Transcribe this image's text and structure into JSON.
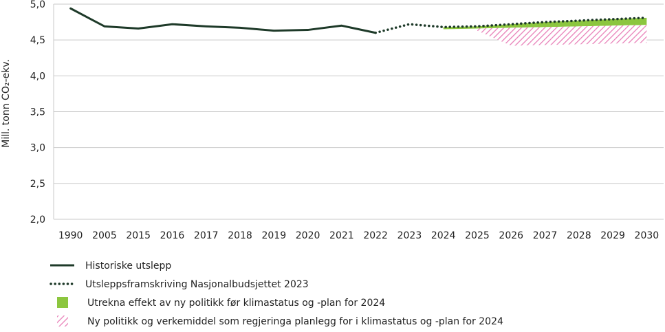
{
  "chart_data": {
    "type": "line",
    "title": "",
    "ylabel": "Mill. tonn CO₂-ekv.",
    "xlabel": "",
    "categories": [
      "1990",
      "2005",
      "2015",
      "2016",
      "2017",
      "2018",
      "2019",
      "2020",
      "2021",
      "2022",
      "2023",
      "2024",
      "2025",
      "2026",
      "2027",
      "2028",
      "2029",
      "2030"
    ],
    "ylim": [
      2.0,
      5.0
    ],
    "yticks": [
      2.0,
      2.5,
      3.0,
      3.5,
      4.0,
      4.5,
      5.0
    ],
    "ytick_labels": [
      "2,0",
      "2,5",
      "3,0",
      "3,5",
      "4,0",
      "4,5",
      "5,0"
    ],
    "grid": true,
    "series": [
      {
        "name": "Historiske utslepp",
        "style": "solid",
        "color": "#1e3a29",
        "x": [
          "1990",
          "2005",
          "2015",
          "2016",
          "2017",
          "2018",
          "2019",
          "2020",
          "2021",
          "2022"
        ],
        "values": [
          4.94,
          4.69,
          4.66,
          4.72,
          4.69,
          4.67,
          4.63,
          4.64,
          4.7,
          4.6
        ]
      },
      {
        "name": "Utsleppsframskriving Nasjonalbudsjettet 2023",
        "style": "dotted",
        "color": "#1e3a29",
        "x": [
          "2022",
          "2023",
          "2024",
          "2025",
          "2026",
          "2027",
          "2028",
          "2029",
          "2030"
        ],
        "values": [
          4.6,
          4.72,
          4.68,
          4.69,
          4.72,
          4.75,
          4.77,
          4.79,
          4.81
        ]
      }
    ],
    "bands": [
      {
        "name": "Utrekna effekt av ny politikk før klimastatus og -plan for 2024",
        "fill": "solid",
        "color": "#8cc63f",
        "x": [
          "2024",
          "2025",
          "2026",
          "2027",
          "2028",
          "2029",
          "2030"
        ],
        "upper": [
          4.68,
          4.69,
          4.72,
          4.75,
          4.77,
          4.79,
          4.81
        ],
        "lower": [
          4.65,
          4.66,
          4.67,
          4.68,
          4.69,
          4.7,
          4.71
        ]
      },
      {
        "name": "Ny politikk og verkemiddel som regjeringa planlegg for i klimastatus og -plan for 2024",
        "fill": "hatched",
        "color": "#e87fb8",
        "x": [
          "2025",
          "2026",
          "2027",
          "2028",
          "2029",
          "2030"
        ],
        "upper": [
          4.66,
          4.67,
          4.68,
          4.69,
          4.7,
          4.71
        ],
        "lower": [
          4.63,
          4.42,
          4.43,
          4.44,
          4.45,
          4.46
        ]
      }
    ],
    "legend": {
      "placement": "bottom-left",
      "entries": [
        {
          "label": "Historiske utslepp",
          "kind": "solid-line"
        },
        {
          "label": "Utsleppsframskriving Nasjonalbudsjettet 2023",
          "kind": "dotted-line"
        },
        {
          "label": "Utrekna effekt av ny politikk før klimastatus og -plan for 2024",
          "kind": "solid-patch"
        },
        {
          "label": "Ny politikk og verkemiddel som regjeringa planlegg for i klimastatus og -plan for 2024",
          "kind": "hatched-patch"
        }
      ]
    }
  }
}
